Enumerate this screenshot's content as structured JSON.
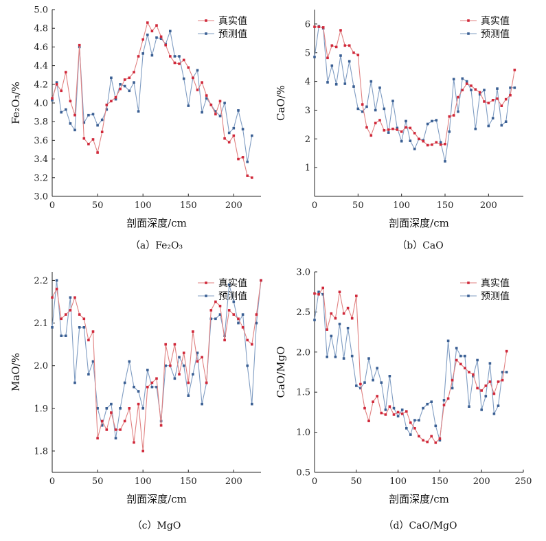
{
  "legend": {
    "actual": "真实值",
    "predicted": "预测值"
  },
  "colors": {
    "actual": "#d0283a",
    "predicted": "#3a5f93",
    "actual_line": "#e08080",
    "predicted_line": "#7f9cc2"
  },
  "chart_data": [
    {
      "type": "line",
      "caption": "（a）Fe₂O₃",
      "xlabel": "剖面深度/cm",
      "ylabel": "Fe₂O₃/%",
      "xlim": [
        0,
        230
      ],
      "ylim": [
        3.0,
        5.0
      ],
      "xticks": [
        "0",
        "50",
        "100",
        "150",
        "200"
      ],
      "xtick_values": [
        0,
        50,
        100,
        150,
        200
      ],
      "yticks": [
        "3.0",
        "3.2",
        "3.4",
        "3.6",
        "3.8",
        "4.0",
        "4.2",
        "4.4",
        "4.6",
        "4.8",
        "5.0"
      ],
      "ytick_values": [
        3.0,
        3.2,
        3.4,
        3.6,
        3.8,
        4.0,
        4.2,
        4.4,
        4.6,
        4.8,
        5.0
      ],
      "legend_position": "top-right",
      "series": [
        {
          "name": "真实值",
          "role": "actual",
          "x": [
            0,
            5,
            10,
            15,
            20,
            25,
            30,
            35,
            40,
            45,
            50,
            55,
            60,
            65,
            70,
            75,
            80,
            85,
            90,
            95,
            100,
            105,
            110,
            115,
            120,
            125,
            130,
            135,
            140,
            145,
            150,
            155,
            160,
            165,
            170,
            175,
            180,
            185,
            190,
            195,
            200,
            205,
            210,
            215,
            220
          ],
          "y": [
            4.05,
            4.2,
            4.13,
            4.33,
            4.02,
            3.87,
            4.62,
            3.62,
            3.56,
            3.61,
            3.47,
            3.69,
            3.98,
            4.02,
            4.06,
            4.15,
            4.25,
            4.27,
            4.33,
            4.5,
            4.68,
            4.86,
            4.77,
            4.83,
            4.71,
            4.62,
            4.5,
            4.43,
            4.42,
            4.46,
            4.38,
            4.27,
            4.14,
            4.22,
            4.08,
            3.98,
            3.88,
            4.02,
            3.62,
            3.58,
            3.65,
            3.4,
            3.42,
            3.22,
            3.2
          ]
        },
        {
          "name": "预测值",
          "role": "predicted",
          "x": [
            0,
            5,
            10,
            15,
            20,
            25,
            30,
            35,
            40,
            45,
            50,
            55,
            60,
            65,
            70,
            75,
            80,
            85,
            90,
            95,
            100,
            105,
            110,
            115,
            120,
            125,
            130,
            135,
            140,
            145,
            150,
            155,
            160,
            165,
            170,
            175,
            180,
            185,
            190,
            195,
            200,
            205,
            210,
            215,
            220
          ],
          "y": [
            4.03,
            4.22,
            3.9,
            3.93,
            3.78,
            3.71,
            4.6,
            3.79,
            3.87,
            3.88,
            3.76,
            3.82,
            3.93,
            4.27,
            4.04,
            4.2,
            4.18,
            4.13,
            4.22,
            3.91,
            4.53,
            4.73,
            4.51,
            4.7,
            4.69,
            4.63,
            4.77,
            4.5,
            4.5,
            4.26,
            3.97,
            4.27,
            4.35,
            3.9,
            4.05,
            3.98,
            3.91,
            3.86,
            4.0,
            3.68,
            3.73,
            3.92,
            3.72,
            3.37,
            3.65
          ]
        }
      ]
    },
    {
      "type": "line",
      "caption": "（b）CaO",
      "xlabel": "剖面深度/cm",
      "ylabel": "CaO/%",
      "xlim": [
        0,
        240
      ],
      "ylim": [
        0,
        6.5
      ],
      "xticks": [
        "0",
        "50",
        "100",
        "150",
        "200"
      ],
      "xtick_values": [
        0,
        50,
        100,
        150,
        200
      ],
      "yticks": [
        "1",
        "2",
        "3",
        "4",
        "5",
        "6"
      ],
      "ytick_values": [
        1,
        2,
        3,
        4,
        5,
        6
      ],
      "legend_position": "top-right",
      "series": [
        {
          "name": "真实值",
          "role": "actual",
          "x": [
            0,
            5,
            10,
            15,
            20,
            25,
            30,
            35,
            40,
            45,
            50,
            55,
            60,
            65,
            70,
            75,
            80,
            85,
            90,
            95,
            100,
            105,
            110,
            115,
            120,
            125,
            130,
            135,
            140,
            145,
            150,
            155,
            160,
            165,
            170,
            175,
            180,
            185,
            190,
            195,
            200,
            205,
            210,
            215,
            220,
            225,
            230
          ],
          "y": [
            5.9,
            5.9,
            5.88,
            4.82,
            5.25,
            5.2,
            5.78,
            5.25,
            5.25,
            5.0,
            4.92,
            3.2,
            2.4,
            2.12,
            2.55,
            2.65,
            2.3,
            2.32,
            2.35,
            2.32,
            2.25,
            2.4,
            2.38,
            2.2,
            2.0,
            1.92,
            1.78,
            1.8,
            1.88,
            1.8,
            1.82,
            2.78,
            2.82,
            3.45,
            3.7,
            3.92,
            3.85,
            3.72,
            3.62,
            3.3,
            3.25,
            3.35,
            3.4,
            3.15,
            3.38,
            3.52,
            4.4
          ]
        },
        {
          "name": "预测值",
          "role": "predicted",
          "x": [
            0,
            5,
            10,
            15,
            20,
            25,
            30,
            35,
            40,
            45,
            50,
            55,
            60,
            65,
            70,
            75,
            80,
            85,
            90,
            95,
            100,
            105,
            110,
            115,
            120,
            125,
            130,
            135,
            140,
            145,
            150,
            155,
            160,
            165,
            170,
            175,
            180,
            185,
            190,
            195,
            200,
            205,
            210,
            215,
            220,
            225,
            230
          ],
          "y": [
            4.85,
            5.92,
            5.85,
            3.97,
            4.55,
            3.9,
            4.9,
            3.92,
            4.7,
            3.82,
            3.05,
            2.95,
            3.12,
            4.0,
            3.0,
            3.78,
            3.05,
            2.22,
            3.32,
            2.38,
            1.92,
            2.62,
            1.93,
            1.65,
            2.0,
            1.95,
            2.52,
            2.62,
            2.65,
            1.88,
            1.22,
            2.25,
            4.08,
            2.95,
            4.1,
            4.0,
            3.7,
            2.35,
            3.55,
            3.7,
            2.45,
            2.72,
            3.75,
            2.47,
            2.6,
            3.78,
            3.78
          ]
        }
      ]
    },
    {
      "type": "line",
      "caption": "（c）MgO",
      "xlabel": "剖面深度/cm",
      "ylabel": "MaO/%",
      "xlim": [
        0,
        230
      ],
      "ylim": [
        1.75,
        2.22
      ],
      "xticks": [
        "0",
        "50",
        "100",
        "150",
        "200"
      ],
      "xtick_values": [
        0,
        50,
        100,
        150,
        200
      ],
      "yticks": [
        "1.8",
        "1.9",
        "2.0",
        "2.1",
        "2.2"
      ],
      "ytick_values": [
        1.8,
        1.9,
        2.0,
        2.1,
        2.2
      ],
      "legend_position": "top-right",
      "series": [
        {
          "name": "真实值",
          "role": "actual",
          "x": [
            0,
            5,
            10,
            15,
            20,
            25,
            30,
            35,
            40,
            45,
            50,
            55,
            60,
            65,
            70,
            75,
            80,
            85,
            90,
            95,
            100,
            105,
            110,
            115,
            120,
            125,
            130,
            135,
            140,
            145,
            150,
            155,
            160,
            165,
            170,
            175,
            180,
            185,
            190,
            195,
            200,
            205,
            210,
            215,
            220,
            225,
            230
          ],
          "y": [
            2.16,
            2.18,
            2.11,
            2.12,
            2.13,
            2.16,
            2.12,
            2.11,
            2.06,
            2.08,
            1.83,
            1.87,
            1.85,
            1.89,
            1.85,
            1.85,
            1.87,
            1.9,
            1.82,
            1.91,
            1.8,
            1.95,
            1.96,
            1.97,
            1.86,
            2.05,
            2.0,
            2.05,
            1.98,
            2.03,
            1.96,
            2.08,
            2.01,
            2.02,
            1.96,
            2.13,
            2.15,
            2.14,
            2.06,
            2.13,
            2.12,
            2.11,
            2.09,
            2.06,
            2.05,
            2.12,
            2.2
          ]
        },
        {
          "name": "预测值",
          "role": "predicted",
          "x": [
            0,
            5,
            10,
            15,
            20,
            25,
            30,
            35,
            40,
            45,
            50,
            55,
            60,
            65,
            70,
            75,
            80,
            85,
            90,
            95,
            100,
            105,
            110,
            115,
            120,
            125,
            130,
            135,
            140,
            145,
            150,
            155,
            160,
            165,
            170,
            175,
            180,
            185,
            190,
            195,
            200,
            205,
            210,
            215,
            220,
            225,
            230
          ],
          "y": [
            2.09,
            2.2,
            2.07,
            2.07,
            2.16,
            1.96,
            2.09,
            2.09,
            1.98,
            2.01,
            1.9,
            1.86,
            1.9,
            1.91,
            1.83,
            1.9,
            1.96,
            2.01,
            1.95,
            1.94,
            1.9,
            1.99,
            1.95,
            1.95,
            1.87,
            2.0,
            2.0,
            1.97,
            2.02,
            2.0,
            1.93,
            1.98,
            2.03,
            1.91,
            1.96,
            2.11,
            2.11,
            2.12,
            2.07,
            2.19,
            2.15,
            2.1,
            2.12,
            2.0,
            1.91,
            2.1,
            2.2
          ]
        }
      ]
    },
    {
      "type": "line",
      "caption": "（d）CaO/MgO",
      "xlabel": "剖面深度/cm",
      "ylabel": "CaO/MgO",
      "xlim": [
        0,
        250
      ],
      "ylim": [
        0.5,
        3.0
      ],
      "xticks": [
        "0",
        "50",
        "100",
        "150",
        "200",
        "250"
      ],
      "xtick_values": [
        0,
        50,
        100,
        150,
        200,
        250
      ],
      "yticks": [
        "0.5",
        "1.0",
        "1.5",
        "2.0",
        "2.5",
        "3.0"
      ],
      "ytick_values": [
        0.5,
        1.0,
        1.5,
        2.0,
        2.5,
        3.0
      ],
      "legend_position": "top-right",
      "series": [
        {
          "name": "真实值",
          "role": "actual",
          "x": [
            0,
            5,
            10,
            15,
            20,
            25,
            30,
            35,
            40,
            45,
            50,
            55,
            60,
            65,
            70,
            75,
            80,
            85,
            90,
            95,
            100,
            105,
            110,
            115,
            120,
            125,
            130,
            135,
            140,
            145,
            150,
            155,
            160,
            165,
            170,
            175,
            180,
            185,
            190,
            195,
            200,
            205,
            210,
            215,
            220,
            225,
            230
          ],
          "y": [
            2.73,
            2.72,
            2.8,
            2.28,
            2.48,
            2.42,
            2.75,
            2.48,
            2.55,
            2.42,
            2.7,
            1.6,
            1.3,
            1.14,
            1.38,
            1.45,
            1.24,
            1.22,
            1.32,
            1.22,
            1.25,
            1.23,
            1.26,
            1.12,
            1.05,
            0.95,
            0.9,
            0.88,
            0.95,
            0.87,
            0.92,
            1.34,
            1.42,
            1.65,
            1.9,
            1.85,
            1.8,
            1.75,
            1.72,
            1.55,
            1.52,
            1.58,
            1.63,
            1.48,
            1.63,
            1.65,
            2.01
          ]
        },
        {
          "name": "预测值",
          "role": "predicted",
          "x": [
            0,
            5,
            10,
            15,
            20,
            25,
            30,
            35,
            40,
            45,
            50,
            55,
            60,
            65,
            70,
            75,
            80,
            85,
            90,
            95,
            100,
            105,
            110,
            115,
            120,
            125,
            130,
            135,
            140,
            145,
            150,
            155,
            160,
            165,
            170,
            175,
            180,
            185,
            190,
            195,
            200,
            205,
            210,
            215,
            220,
            225,
            230
          ],
          "y": [
            2.4,
            2.75,
            2.72,
            1.94,
            2.2,
            1.94,
            2.35,
            1.92,
            2.3,
            1.95,
            1.58,
            1.55,
            1.62,
            1.92,
            1.65,
            1.8,
            1.62,
            1.28,
            1.7,
            1.3,
            1.2,
            1.28,
            1.05,
            0.97,
            1.15,
            1.15,
            1.3,
            1.35,
            1.38,
            1.08,
            0.9,
            1.4,
            2.14,
            1.55,
            2.05,
            1.95,
            1.95,
            1.32,
            1.7,
            1.9,
            1.28,
            1.45,
            1.86,
            1.23,
            1.33,
            1.75,
            1.75
          ]
        }
      ]
    }
  ]
}
